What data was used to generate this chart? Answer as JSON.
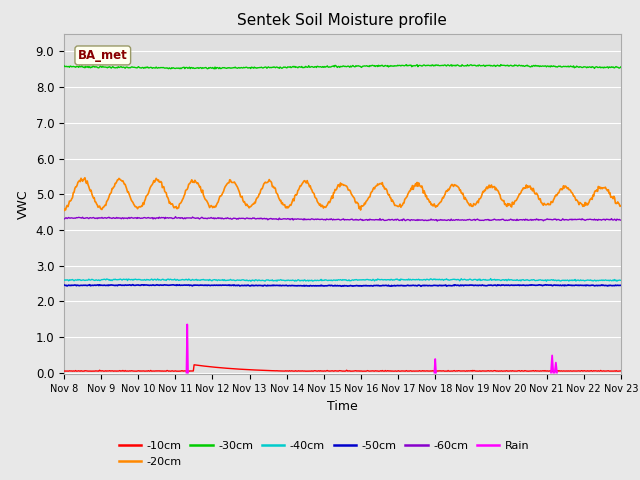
{
  "title": "Sentek Soil Moisture profile",
  "xlabel": "Time",
  "ylabel": "VWC",
  "ylim": [
    0,
    9.5
  ],
  "yticks": [
    0.0,
    1.0,
    2.0,
    3.0,
    4.0,
    5.0,
    6.0,
    7.0,
    8.0,
    9.0
  ],
  "fig_bg_color": "#e8e8e8",
  "plot_bg_color": "#e0e0e0",
  "label_box": "BA_met",
  "label_box_bg": "#fffff0",
  "label_box_border": "#999966",
  "label_box_text_color": "#880000",
  "colors": {
    "-10cm": "#ff0000",
    "-20cm": "#ff8800",
    "-30cm": "#00cc00",
    "-40cm": "#00cccc",
    "-50cm": "#0000cc",
    "-60cm": "#8800cc",
    "Rain": "#ff00ff"
  },
  "x_start_day": 8,
  "x_end_day": 23,
  "num_points": 720,
  "xtick_days": [
    8,
    9,
    10,
    11,
    12,
    13,
    14,
    15,
    16,
    17,
    18,
    19,
    20,
    21,
    22,
    23
  ],
  "grid_color": "#ffffff",
  "linewidth": 1.0
}
